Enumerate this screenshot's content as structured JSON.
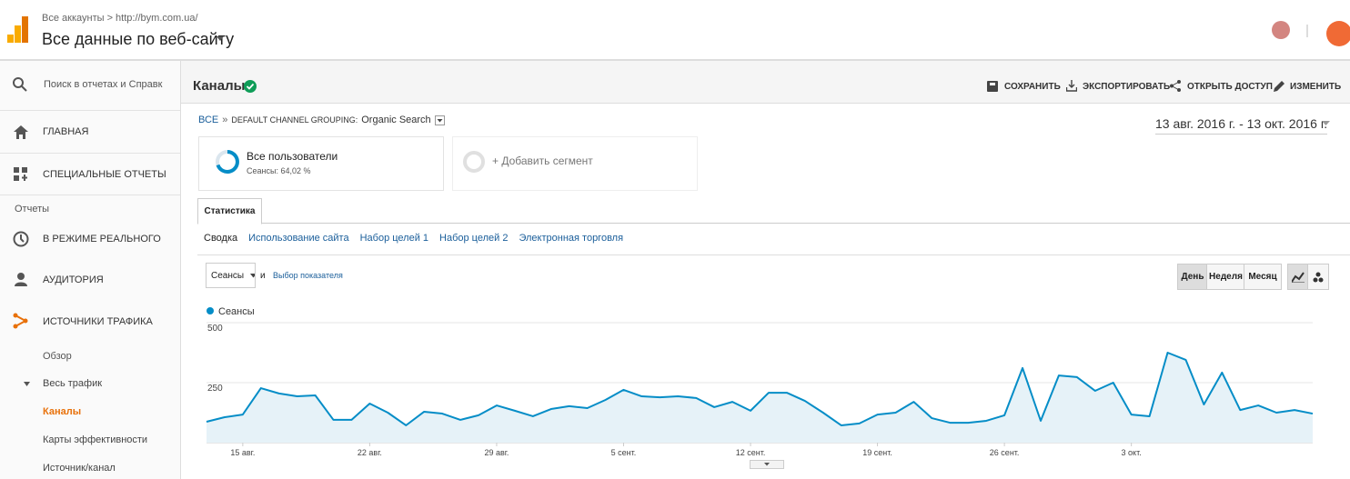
{
  "header": {
    "breadcrumb": "Все аккаунты > http://bym.com.ua/",
    "title": "Все данные по веб-сайту"
  },
  "sidebar": {
    "search": "Поиск в отчетах и Справк",
    "home": "ГЛАВНАЯ",
    "custom": "СПЕЦИАЛЬНЫЕ ОТЧЕТЫ",
    "section": "Отчеты",
    "realtime": "В РЕЖИМЕ РЕАЛЬНОГО",
    "audience": "АУДИТОРИЯ",
    "acquisition": "ИСТОЧНИКИ ТРАФИКА",
    "overview": "Обзор",
    "all_traffic": "Весь трафик",
    "channels": "Каналы",
    "treemaps": "Карты эффективности",
    "source_medium": "Источник/канал"
  },
  "page": {
    "title": "Каналы",
    "actions": [
      "СОХРАНИТЬ",
      "ЭКСПОРТИРОВАТЬ",
      "ОТКРЫТЬ ДОСТУП",
      "ИЗМЕНИТЬ"
    ],
    "crumb_all": "ВСЕ",
    "crumb_sep": "»",
    "crumb_dim": "DEFAULT CHANNEL GROUPING:",
    "crumb_value": "Organic Search",
    "date_range": "13 авг. 2016 г. - 13 окт. 2016 г.",
    "segment_name": "Все пользователи",
    "segment_detail": "Сеансы: 64,02 %",
    "add_segment": "+ Добавить сегмент",
    "tab": "Статистика",
    "subtabs": [
      "Сводка",
      "Использование сайта",
      "Набор целей 1",
      "Набор целей 2",
      "Электронная торговля"
    ],
    "metric": "Сеансы",
    "and": "и",
    "select_metric": "Выбор показателя",
    "periods": [
      "День",
      "Неделя",
      "Месяц"
    ]
  },
  "chart_data": {
    "type": "area",
    "categories": [
      null,
      null,
      "15 авг.",
      null,
      null,
      null,
      null,
      null,
      null,
      "22 авг.",
      null,
      null,
      null,
      null,
      null,
      null,
      "29 авг.",
      null,
      null,
      null,
      null,
      null,
      null,
      "5 сент.",
      null,
      null,
      null,
      null,
      null,
      null,
      "12 сент.",
      null,
      null,
      null,
      null,
      null,
      null,
      "19 сент.",
      null,
      null,
      null,
      null,
      null,
      null,
      "26 сент.",
      null,
      null,
      null,
      null,
      null,
      null,
      "3 окт.",
      null,
      null,
      null,
      null,
      null,
      null,
      null,
      null,
      null,
      null
    ],
    "series": [
      {
        "name": "Сеансы",
        "color": "#058dc7",
        "fill": "#e6f2f8",
        "values": [
          87,
          106,
          117,
          227,
          205,
          193,
          197,
          95,
          95,
          163,
          125,
          72,
          129,
          121,
          95,
          114,
          155,
          133,
          110,
          140,
          152,
          144,
          178,
          220,
          193,
          189,
          193,
          186,
          148,
          170,
          133,
          208,
          208,
          174,
          125,
          72,
          80,
          117,
          125,
          170,
          102,
          83,
          83,
          91,
          114,
          311,
          91,
          280,
          273,
          216,
          250,
          117,
          110,
          375,
          345,
          159,
          292,
          136,
          155,
          125,
          136,
          121
        ]
      }
    ],
    "ylim": [
      0,
      500
    ],
    "yticks": [
      250,
      500
    ],
    "grid": true
  }
}
